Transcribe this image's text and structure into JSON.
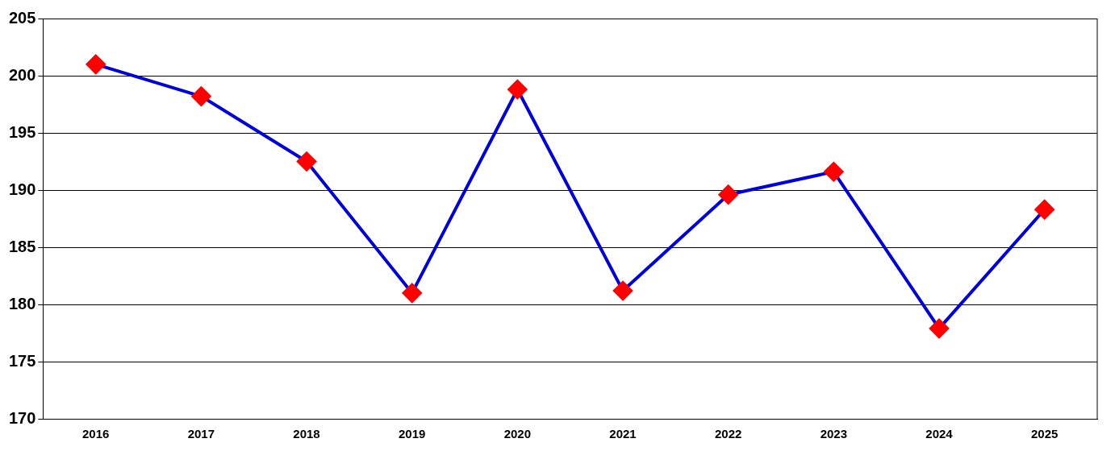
{
  "chart_data": {
    "type": "line",
    "categories": [
      "2016",
      "2017",
      "2018",
      "2019",
      "2020",
      "2021",
      "2022",
      "2023",
      "2024",
      "2025"
    ],
    "series": [
      {
        "color": "#0000dd",
        "colors": [
          "#ff0000",
          "#ff0000",
          "#ff0000",
          "#ff0000",
          "#ff0000",
          "#ff0000",
          "#ff0000",
          "#ff0000",
          "#ff0000",
          "#ff0000"
        ],
        "values": [
          201.0,
          198.2,
          192.5,
          181.0,
          198.8,
          181.2,
          189.6,
          191.6,
          177.9,
          188.3
        ]
      }
    ],
    "ylim": [
      170,
      205
    ],
    "yticks": [
      170,
      175,
      180,
      185,
      190,
      195,
      200,
      205
    ],
    "grid": "y",
    "marker": "diamond",
    "line_style": "solid"
  }
}
